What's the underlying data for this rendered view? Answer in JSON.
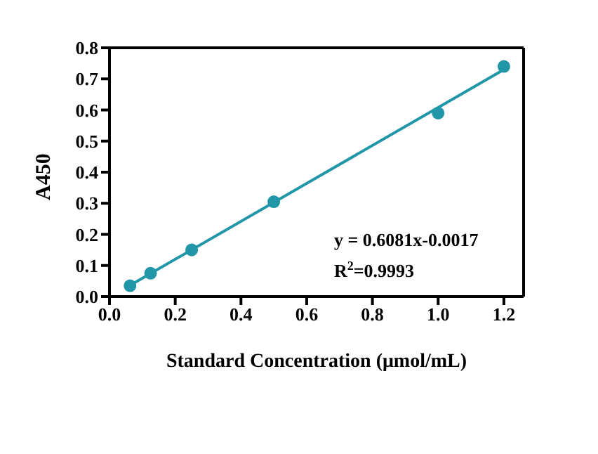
{
  "chart_data": {
    "type": "scatter",
    "xlabel": "Standard Concentration (μmol/mL)",
    "ylabel": "A450",
    "series": [
      {
        "color": "#2196a8",
        "marker": "circle",
        "x": [
          0.0625,
          0.125,
          0.25,
          0.5,
          1.0,
          1.2
        ],
        "values": [
          0.035,
          0.075,
          0.15,
          0.305,
          0.59,
          0.74
        ]
      },
      {
        "type": "line",
        "color": "#2196a8",
        "marker": "none",
        "x": [
          0.0625,
          1.2
        ],
        "values": [
          0.036,
          0.73
        ]
      }
    ],
    "xlim": [
      0,
      1.26
    ],
    "xticks": [
      {
        "value": 0,
        "label": "0.0"
      },
      0.2,
      0.4,
      0.6,
      0.8,
      {
        "value": 1,
        "label": "1.0"
      },
      1.2
    ],
    "ylim": [
      0,
      0.8
    ],
    "yticks": [
      {
        "value": 0,
        "label": "0.0"
      },
      0.1,
      0.2,
      0.3,
      0.4,
      0.5,
      0.6,
      0.7,
      0.8
    ],
    "grid": false,
    "legend": false,
    "annotations": [
      {
        "text": "y = 0.6081x-0.0017"
      },
      {
        "text": "R$^{2}$=0.9993"
      }
    ]
  }
}
